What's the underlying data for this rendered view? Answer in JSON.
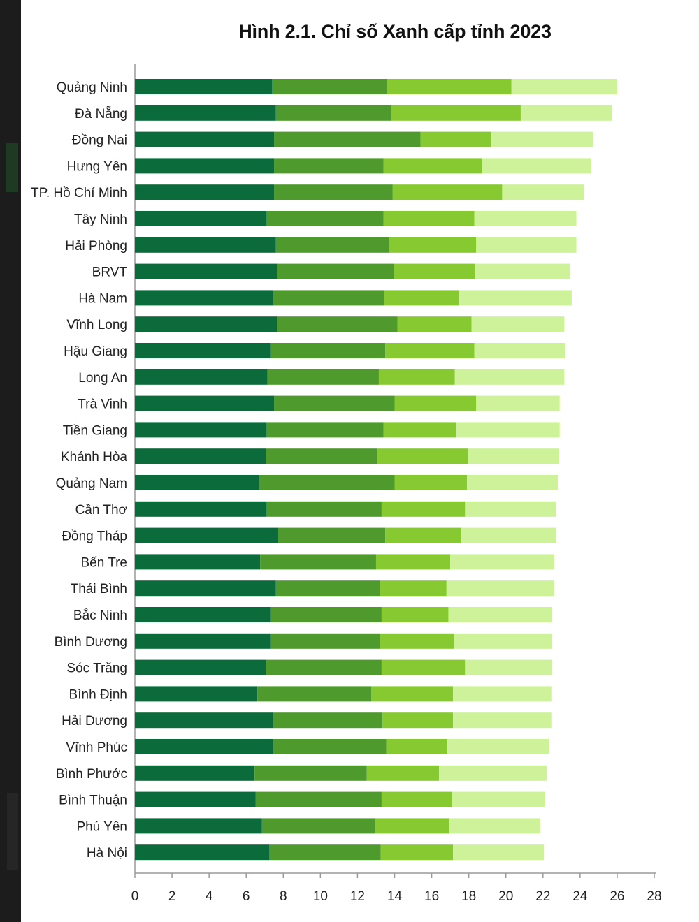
{
  "colors": {
    "segment_1": "#0b6b3a",
    "segment_2": "#4e9a2c",
    "segment_3": "#86c930",
    "segment_4": "#cdf29a",
    "axis": "#9a9a9a",
    "text": "#222222"
  },
  "chart_data": {
    "type": "bar",
    "orientation": "horizontal",
    "stacked": true,
    "title": "Hình 2.1. Chỉ số Xanh cấp tỉnh 2023",
    "xlabel": "",
    "ylabel": "",
    "xlim": [
      0,
      28
    ],
    "xticks": [
      0,
      2,
      4,
      6,
      8,
      10,
      12,
      14,
      16,
      18,
      20,
      22,
      24,
      26,
      28
    ],
    "grid": false,
    "legend": "none",
    "categories": [
      "Quảng Ninh",
      "Đà Nẵng",
      "Đồng Nai",
      "Hưng Yên",
      "TP. Hồ Chí Minh",
      "Tây Ninh",
      "Hải Phòng",
      "BRVT",
      "Hà Nam",
      "Vĩnh Long",
      "Hậu Giang",
      "Long An",
      "Trà Vinh",
      "Tiền Giang",
      "Khánh Hòa",
      "Quảng Nam",
      "Cần Thơ",
      "Đồng Tháp",
      "Bến Tre",
      "Thái Bình",
      "Bắc Ninh",
      "Bình Dương",
      "Sóc Trăng",
      "Bình Định",
      "Hải Dương",
      "Vĩnh Phúc",
      "Bình Phước",
      "Bình Thuận",
      "Phú Yên",
      "Hà Nội"
    ],
    "series": [
      {
        "values": [
          7.4,
          7.6,
          7.5,
          7.5,
          7.5,
          7.1,
          7.6,
          7.65,
          7.45,
          7.65,
          7.3,
          7.15,
          7.5,
          7.1,
          7.05,
          6.7,
          7.1,
          7.7,
          6.75,
          7.6,
          7.3,
          7.3,
          7.05,
          6.6,
          7.45,
          7.45,
          6.45,
          6.5,
          6.85,
          7.25
        ]
      },
      {
        "values": [
          6.2,
          6.2,
          7.9,
          5.9,
          6.4,
          6.3,
          6.1,
          6.3,
          6.0,
          6.5,
          6.2,
          6.0,
          6.5,
          6.3,
          6.0,
          7.3,
          6.2,
          5.8,
          6.25,
          5.6,
          6.0,
          5.9,
          6.25,
          6.15,
          5.9,
          6.1,
          6.05,
          6.8,
          6.1,
          6.0
        ]
      },
      {
        "values": [
          6.7,
          7.0,
          3.8,
          5.3,
          5.9,
          4.9,
          4.7,
          4.4,
          4.0,
          4.0,
          4.8,
          4.1,
          4.4,
          3.9,
          4.9,
          3.9,
          4.5,
          4.1,
          4.0,
          3.6,
          3.6,
          4.0,
          4.5,
          4.4,
          3.8,
          3.3,
          3.9,
          3.8,
          4.0,
          3.9
        ]
      },
      {
        "values": [
          5.7,
          4.9,
          5.5,
          5.9,
          4.4,
          5.5,
          5.4,
          5.1,
          6.1,
          5.0,
          4.9,
          5.9,
          4.5,
          5.6,
          4.9,
          4.9,
          4.9,
          5.1,
          5.6,
          5.8,
          5.6,
          5.3,
          4.7,
          5.3,
          5.3,
          5.5,
          5.8,
          5.0,
          4.9,
          4.9
        ]
      }
    ]
  }
}
